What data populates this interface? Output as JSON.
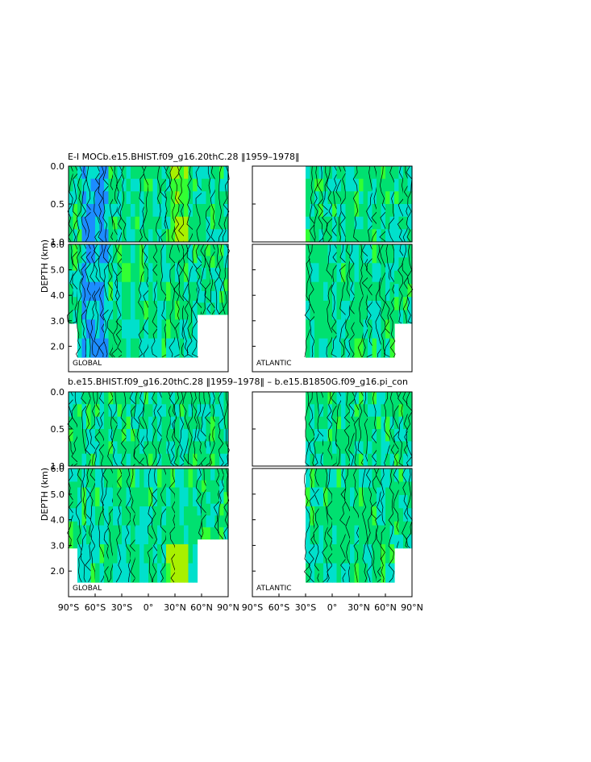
{
  "chart_data": [
    {
      "type": "heatmap",
      "title": "E-I MOCb.e15.BHIST.f09_g16.20thC.28 ‖1959–1978‖",
      "ylabel": "DEPTH (km)",
      "upper_ylim": [
        1.0,
        0.0
      ],
      "lower_ylim": [
        6.0,
        1.0
      ],
      "upper_ticks": [
        "0.0",
        "0.5",
        "1.0"
      ],
      "lower_ticks": [
        "2.0",
        "3.0",
        "4.0",
        "5.0",
        "6.0"
      ],
      "panels": [
        {
          "label": "GLOBAL",
          "xlim": [
            -90,
            90
          ],
          "field_range": [
            -0.3,
            0.3
          ]
        },
        {
          "label": "ATLANTIC",
          "xlim": [
            -90,
            90
          ],
          "valid_from_lat": -30,
          "field_range": [
            -0.3,
            0.3
          ]
        }
      ]
    },
    {
      "type": "heatmap",
      "title": "b.e15.BHIST.f09_g16.20thC.28 ‖1959–1978‖ – b.e15.B1850G.f09_g16.pi_con",
      "ylabel": "DEPTH (km)",
      "upper_ylim": [
        1.0,
        0.0
      ],
      "lower_ylim": [
        6.0,
        1.0
      ],
      "upper_ticks": [
        "0.0",
        "0.5",
        "1.0"
      ],
      "lower_ticks": [
        "2.0",
        "3.0",
        "4.0",
        "5.0",
        "6.0"
      ],
      "x_ticks": [
        "90°S",
        "60°S",
        "30°S",
        "0°",
        "30°N",
        "60°N",
        "90°N"
      ],
      "panels": [
        {
          "label": "GLOBAL",
          "xlim": [
            -90,
            90
          ],
          "field_range": [
            -0.3,
            0.3
          ]
        },
        {
          "label": "ATLANTIC",
          "xlim": [
            -90,
            90
          ],
          "valid_from_lat": -30,
          "field_range": [
            -0.3,
            0.3
          ]
        }
      ]
    }
  ],
  "colors": {
    "blue": "#1c8cff",
    "cyan": "#00e0cc",
    "green": "#00e070",
    "bright_green": "#33ff33",
    "yellow_green": "#a8f000",
    "axis": "#000000"
  }
}
